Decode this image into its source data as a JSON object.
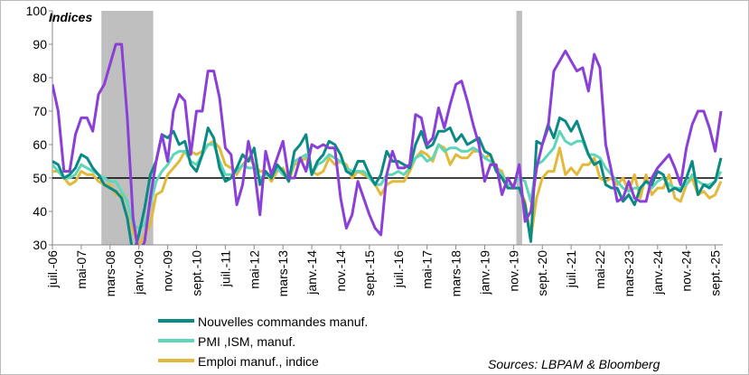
{
  "chart_data": {
    "type": "line",
    "annotations": [
      "Indices",
      "Sources: LBPAM & Bloomberg"
    ],
    "categories": [
      "juil.-06",
      null,
      null,
      null,
      null,
      "mai-07",
      null,
      null,
      null,
      null,
      "mars-08",
      null,
      null,
      null,
      null,
      "janv.-09",
      null,
      null,
      null,
      null,
      "nov.-09",
      null,
      null,
      null,
      null,
      "sept.-10",
      null,
      null,
      null,
      null,
      "juil.-11",
      null,
      null,
      null,
      null,
      "mai-12",
      null,
      null,
      null,
      null,
      "mars-13",
      null,
      null,
      null,
      null,
      "janv.-14",
      null,
      null,
      null,
      null,
      "nov.-14",
      null,
      null,
      null,
      null,
      "sept.-15",
      null,
      null,
      null,
      null,
      "juil.-16",
      null,
      null,
      null,
      null,
      "mai-17",
      null,
      null,
      null,
      null,
      "mars-18",
      null,
      null,
      null,
      null,
      "janv.-19",
      null,
      null,
      null,
      null,
      "nov.-19",
      null,
      null,
      null,
      null,
      "sept.-20",
      null,
      null,
      null,
      null,
      "juil.-21",
      null,
      null,
      null,
      null,
      "mai-22",
      null,
      null,
      null,
      null,
      "mars-23",
      null,
      null,
      null,
      null,
      "janv.-24",
      null,
      null,
      null,
      null,
      "nov.-24",
      null,
      null,
      null,
      null,
      "sept.-25",
      null
    ],
    "series": [
      {
        "name": "Nouvelles commandes manuf.",
        "color": "#0b8a85",
        "values": [
          55,
          54,
          50,
          51,
          53,
          57,
          56,
          53,
          51,
          48,
          47,
          46,
          44,
          38,
          27,
          33,
          41,
          51,
          55,
          63,
          62,
          64,
          60,
          61,
          54,
          52,
          57,
          65,
          62,
          53,
          49,
          50,
          53,
          57,
          55,
          59,
          48,
          52,
          50,
          54,
          52,
          49,
          58,
          60,
          63,
          51,
          55,
          57,
          61,
          60,
          57,
          52,
          51,
          55,
          55,
          51,
          48,
          51,
          58,
          55,
          55,
          54,
          53,
          60,
          64,
          59,
          60,
          64,
          64,
          65,
          61,
          63,
          60,
          61,
          62,
          58,
          57,
          52,
          50,
          47,
          47,
          47,
          42,
          31,
          61,
          60,
          66,
          62,
          68,
          67,
          64,
          67,
          62,
          57,
          54,
          55,
          48,
          47,
          47,
          43,
          45,
          42,
          47,
          49,
          48,
          52,
          51,
          46,
          47,
          46,
          50,
          55,
          45,
          48,
          47,
          49,
          56
        ]
      },
      {
        "name": "PMI ,ISM, manuf.",
        "color": "#5fd6b8",
        "values": [
          54,
          52,
          50,
          50,
          51,
          54,
          53,
          52,
          51,
          50,
          49,
          49,
          46,
          43,
          36,
          35,
          36,
          42,
          49,
          52,
          54,
          57,
          58,
          58,
          55,
          54,
          57,
          60,
          60,
          55,
          51,
          51,
          52,
          54,
          53,
          53,
          50,
          51,
          50,
          53,
          51,
          50,
          55,
          56,
          57,
          51,
          54,
          55,
          57,
          56,
          55,
          53,
          52,
          52,
          52,
          50,
          48,
          48,
          51,
          51,
          52,
          51,
          53,
          56,
          57,
          55,
          56,
          60,
          58,
          59,
          59,
          58,
          58,
          59,
          58,
          56,
          55,
          53,
          51,
          48,
          48,
          50,
          49,
          43,
          54,
          55,
          57,
          59,
          64,
          61,
          60,
          61,
          61,
          57,
          57,
          56,
          53,
          51,
          49,
          47,
          46,
          47,
          47,
          49,
          47,
          49,
          50,
          48,
          47,
          47,
          48,
          51,
          49,
          48,
          48,
          49,
          52
        ]
      },
      {
        "name": "Emploi manuf., indice",
        "color": "#e3b93c",
        "values": [
          52,
          52,
          50,
          48,
          49,
          52,
          51,
          51,
          49,
          48,
          48,
          45,
          45,
          43,
          34,
          30,
          33,
          36,
          45,
          46,
          51,
          53,
          55,
          58,
          58,
          57,
          58,
          60,
          61,
          59,
          54,
          53,
          51,
          54,
          56,
          54,
          52,
          52,
          49,
          52,
          53,
          49,
          54,
          55,
          56,
          52,
          51,
          52,
          56,
          54,
          55,
          54,
          50,
          52,
          51,
          50,
          48,
          45,
          48,
          49,
          49,
          49,
          52,
          56,
          58,
          57,
          55,
          60,
          59,
          54,
          57,
          56,
          56,
          58,
          58,
          56,
          57,
          53,
          52,
          47,
          47,
          47,
          43,
          32,
          44,
          50,
          52,
          52,
          59,
          51,
          53,
          51,
          54,
          54,
          56,
          50,
          49,
          50,
          48,
          50,
          46,
          51,
          44,
          51,
          45,
          47,
          47,
          51,
          44,
          43,
          48,
          50,
          45,
          46,
          44,
          45,
          49
        ]
      },
      {
        "color": "#8a3fd6",
        "values": [
          78,
          70,
          52,
          52,
          63,
          68,
          68,
          64,
          75,
          78,
          84,
          90,
          90,
          68,
          38,
          27,
          31,
          44,
          55,
          63,
          55,
          70,
          75,
          73,
          57,
          70,
          70,
          82,
          82,
          74,
          59,
          57,
          42,
          48,
          61,
          53,
          39,
          58,
          51,
          56,
          61,
          50,
          50,
          56,
          52,
          60,
          59,
          60,
          59,
          59,
          44,
          35,
          39,
          49,
          44,
          39,
          35,
          33,
          51,
          58,
          53,
          53,
          54,
          69,
          68,
          60,
          62,
          71,
          65,
          72,
          78,
          79,
          73,
          66,
          60,
          49,
          54,
          54,
          45,
          50,
          47,
          54,
          37,
          40,
          53,
          60,
          65,
          82,
          85,
          88,
          85,
          82,
          83,
          76,
          87,
          83,
          60,
          52,
          43,
          44,
          49,
          44,
          43,
          43,
          50,
          53,
          55,
          57,
          53,
          48,
          59,
          66,
          70,
          70,
          65,
          58,
          70
        ]
      }
    ],
    "ylim": [
      30,
      100
    ],
    "yticks": [
      30,
      40,
      50,
      60,
      70,
      80,
      90,
      100
    ],
    "reference_line": 50,
    "shaded": [
      [
        8.5,
        17.5
      ],
      [
        80.5,
        81.5
      ]
    ]
  }
}
